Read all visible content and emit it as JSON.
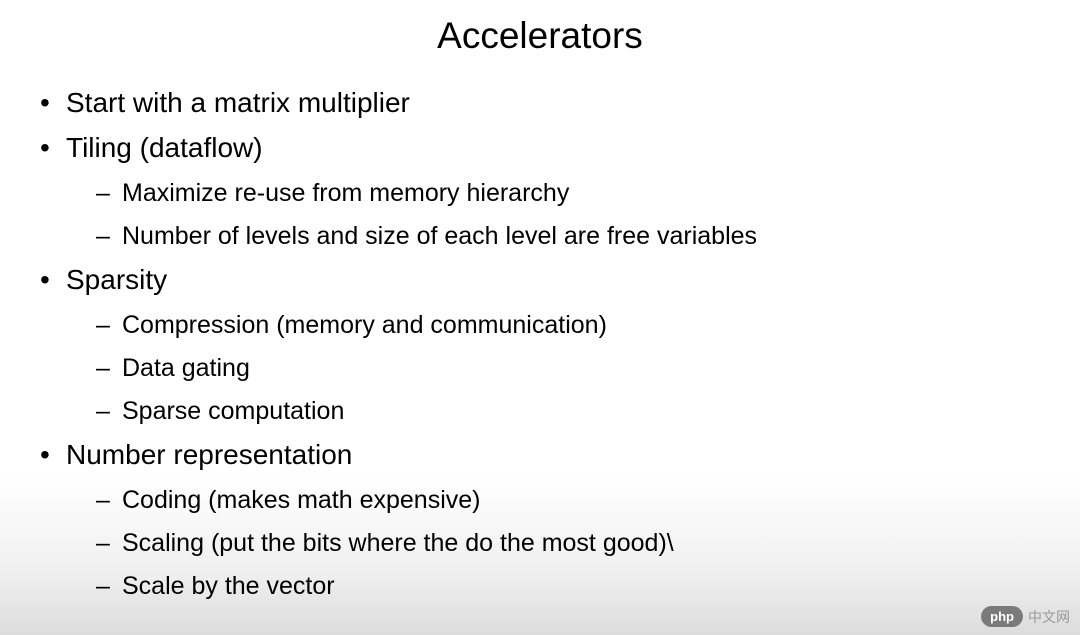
{
  "slide": {
    "title": "Accelerators",
    "title_fontsize": 37,
    "body_fontsize_main": 28,
    "body_fontsize_sub": 25,
    "text_color": "#000000",
    "background_gradient": [
      "#ffffff",
      "#dcdcdc"
    ],
    "bullets": [
      {
        "text": "Start with a matrix multiplier",
        "children": []
      },
      {
        "text": "Tiling (dataflow)",
        "children": [
          "Maximize re-use from memory hierarchy",
          "Number of levels and size of each level are free variables"
        ]
      },
      {
        "text": "Sparsity",
        "children": [
          "Compression (memory and communication)",
          "Data gating",
          "Sparse computation"
        ]
      },
      {
        "text": "Number representation",
        "children": [
          "Coding (makes math expensive)",
          "Scaling (put the bits where the do the most good)\\",
          "Scale by the vector"
        ]
      }
    ]
  },
  "watermark": {
    "badge": "php",
    "text": "中文网",
    "badge_bg": "#7a7a7a",
    "badge_fg": "#ffffff",
    "text_color": "#9a9a9a"
  }
}
